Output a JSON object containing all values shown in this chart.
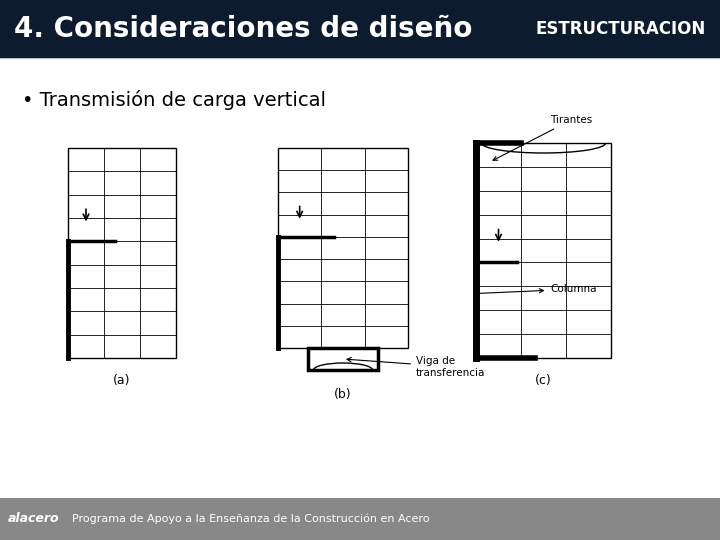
{
  "title_left": "4. Consideraciones de diseño",
  "title_right": "ESTRUCTURACION",
  "title_bg": "#0d1b2e",
  "title_text_color": "#ffffff",
  "subtitle": "• Transmisión de carga vertical",
  "subtitle_color": "#000000",
  "bg_color": "#f0f0f0",
  "footer_bg": "#888888",
  "footer_text": "Programa de Apoyo a la Enseñanza de la Construcción en Acero",
  "label_a": "(a)",
  "label_b": "(b)",
  "label_c": "(c)",
  "label_tirantes": "Tirantes",
  "label_viga": "Viga de\ntransferencia",
  "label_columna": "Columna"
}
